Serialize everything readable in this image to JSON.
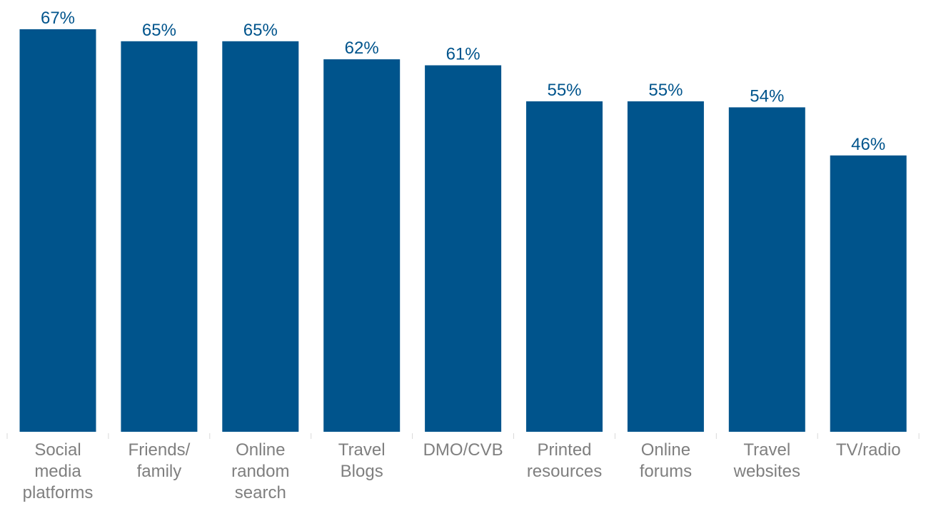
{
  "chart_data": {
    "type": "bar",
    "categories": [
      [
        "Social",
        "media",
        "platforms"
      ],
      [
        "Friends/",
        "family"
      ],
      [
        "Online",
        "random",
        "search"
      ],
      [
        "Travel",
        "Blogs"
      ],
      [
        "DMO/CVB"
      ],
      [
        "Printed",
        "resources"
      ],
      [
        "Online",
        "forums"
      ],
      [
        "Travel",
        "websites"
      ],
      [
        "TV/radio"
      ]
    ],
    "values": [
      67,
      65,
      65,
      62,
      61,
      55,
      55,
      54,
      46
    ],
    "value_labels": [
      "67%",
      "65%",
      "65%",
      "62%",
      "61%",
      "55%",
      "55%",
      "54%",
      "46%"
    ],
    "unit": "%",
    "title": "",
    "xlabel": "",
    "ylabel": "",
    "grid": false,
    "legend": "none",
    "colors": {
      "bar": "#00548c",
      "value_label": "#00548c",
      "category_label": "#7f7f7f",
      "tick": "#d9d9d9"
    }
  }
}
